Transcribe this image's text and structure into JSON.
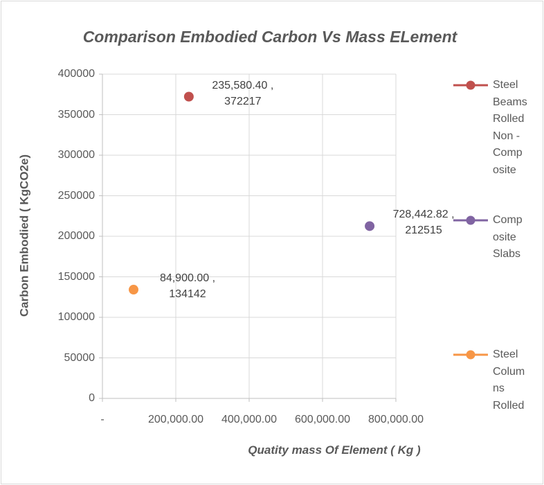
{
  "chart_data": {
    "type": "scatter",
    "title": "Comparison Embodied Carbon Vs Mass ELement",
    "x_label": "Quatity mass Of Element ( Kg )",
    "y_label": "Carbon Embodied ( KgCO2e)",
    "xlim": [
      0,
      800000
    ],
    "xticks": [
      {
        "value": 0,
        "label": "-"
      },
      {
        "value": 200000,
        "label": "200,000.00"
      },
      {
        "value": 400000,
        "label": "400,000.00"
      },
      {
        "value": 600000,
        "label": "600,000.00"
      },
      {
        "value": 800000,
        "label": "800,000.00"
      }
    ],
    "ylim": [
      0,
      400000
    ],
    "yticks": [
      0,
      50000,
      100000,
      150000,
      200000,
      250000,
      300000,
      350000,
      400000
    ],
    "grid": true,
    "legend": "right",
    "series": [
      {
        "name": "Steel Beams Rolled Non - Composite",
        "color": "#c0504d",
        "x": [
          235580.4
        ],
        "values": [
          372217
        ],
        "value_labels": [
          "235,580.40 , 372217"
        ]
      },
      {
        "name": "Composite Slabs",
        "color": "#8064a2",
        "x": [
          728442.82
        ],
        "values": [
          212515
        ],
        "value_labels": [
          "728,442.82 , 212515"
        ]
      },
      {
        "name": "Steel Columns Rolled",
        "color": "#f79646",
        "x": [
          84900
        ],
        "values": [
          134142
        ],
        "value_labels": [
          "84,900.00 , 134142"
        ]
      }
    ]
  }
}
